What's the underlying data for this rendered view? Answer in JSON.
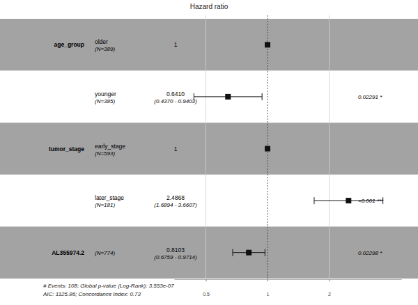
{
  "chart_data": {
    "type": "forest",
    "title": "Hazard ratio",
    "log": "x",
    "grid": true,
    "xlim": [
      0.35,
      4.5
    ],
    "xticks": [
      0.5,
      1,
      2
    ],
    "rows": [
      {
        "variable": "age_group",
        "level": "older",
        "n_label": "(N=389)",
        "hr": 1,
        "hr_label": null,
        "ci_low": null,
        "ci_high": null,
        "ci_label": null,
        "p_label": null
      },
      {
        "variable": null,
        "level": "younger",
        "n_label": "(N=385)",
        "hr": 0.641,
        "hr_label": "0.6410",
        "ci_low": 0.437,
        "ci_high": 0.9403,
        "ci_label": "(0.4370 - 0.9403)",
        "p_label": "0.02291 *"
      },
      {
        "variable": "tumor_stage",
        "level": "early_stage",
        "n_label": "(N=593)",
        "hr": 1,
        "hr_label": null,
        "ci_low": null,
        "ci_high": null,
        "ci_label": null,
        "p_label": null
      },
      {
        "variable": null,
        "level": "later_stage",
        "n_label": "(N=181)",
        "hr": 2.4868,
        "hr_label": "2.4868",
        "ci_low": 1.6894,
        "ci_high": 3.6607,
        "ci_label": "(1.6894 - 3.6607)",
        "p_label": "<0.001 ***"
      },
      {
        "variable": "AL355974.2",
        "level": null,
        "n_label": "(N=774)",
        "hr": 0.8103,
        "hr_label": "0.8103",
        "ci_low": 0.6759,
        "ci_high": 0.9714,
        "ci_label": "(0.6759 - 0.9714)",
        "p_label": "0.02298 *"
      }
    ],
    "footnotes": [
      "# Events: 108; Global p-value (Log-Rank): 3.553e-07",
      "AIC: 1125.86; Concordance Index: 0.73"
    ]
  }
}
